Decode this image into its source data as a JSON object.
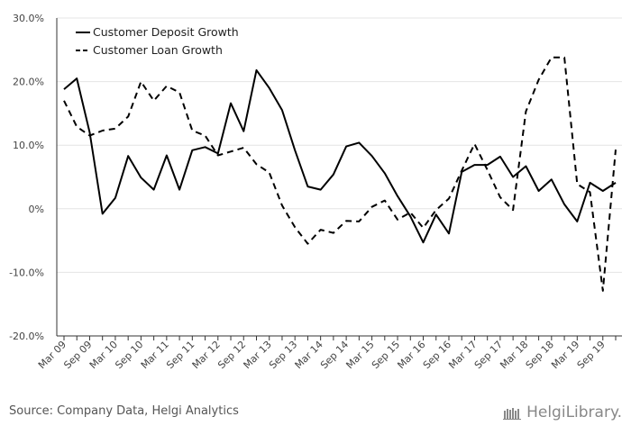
{
  "chart_data": {
    "type": "line",
    "yticks": [
      "30.0%",
      "20.0%",
      "10.0%",
      "0%",
      "-10.0%",
      "-20.0%"
    ],
    "ylim": [
      -20,
      30
    ],
    "xtick_labels": [
      "Mar 09",
      "Sep 09",
      "Mar 10",
      "Sep 10",
      "Mar 11",
      "Sep 11",
      "Mar 12",
      "Sep 12",
      "Mar 13",
      "Sep 13",
      "Mar 14",
      "Sep 14",
      "Mar 15",
      "Sep 15",
      "Mar 16",
      "Sep 16",
      "Mar 17",
      "Sep 17",
      "Mar 18",
      "Sep 18",
      "Mar 19",
      "Sep 19"
    ],
    "x": [
      "Mar 09",
      "Jun 09",
      "Sep 09",
      "Dec 09",
      "Mar 10",
      "Jun 10",
      "Sep 10",
      "Dec 10",
      "Mar 11",
      "Jun 11",
      "Sep 11",
      "Dec 11",
      "Mar 12",
      "Jun 12",
      "Sep 12",
      "Dec 12",
      "Mar 13",
      "Jun 13",
      "Sep 13",
      "Dec 13",
      "Mar 14",
      "Jun 14",
      "Sep 14",
      "Dec 14",
      "Mar 15",
      "Jun 15",
      "Sep 15",
      "Dec 15",
      "Mar 16",
      "Jun 16",
      "Sep 16",
      "Dec 16",
      "Mar 17",
      "Jun 17",
      "Sep 17",
      "Dec 17",
      "Mar 18",
      "Jun 18",
      "Sep 18",
      "Dec 18",
      "Mar 19",
      "Jun 19",
      "Sep 19",
      "Dec 19"
    ],
    "series": [
      {
        "name": "Customer Deposit Growth",
        "style": "solid",
        "values": [
          18.8,
          20.5,
          12.0,
          -0.8,
          1.7,
          8.3,
          4.9,
          3.0,
          8.4,
          3.0,
          9.2,
          9.7,
          8.7,
          16.6,
          12.2,
          21.8,
          19.0,
          15.5,
          9.2,
          3.5,
          3.0,
          5.4,
          9.8,
          10.4,
          8.3,
          5.6,
          2.0,
          -1.2,
          -5.3,
          -0.9,
          -3.9,
          5.8,
          6.9,
          6.9,
          8.2,
          5.0,
          6.7,
          2.8,
          4.6,
          0.7,
          -2.0,
          4.1,
          2.8,
          4.1
        ]
      },
      {
        "name": "Customer Loan Growth",
        "style": "dashed",
        "values": [
          17.0,
          12.9,
          11.5,
          12.3,
          12.6,
          14.5,
          20.0,
          17.0,
          19.3,
          18.3,
          12.3,
          11.5,
          8.4,
          9.0,
          9.6,
          7.0,
          5.7,
          0.5,
          -2.9,
          -5.5,
          -3.3,
          -3.8,
          -1.9,
          -2.0,
          0.3,
          1.3,
          -1.7,
          -0.6,
          -3.0,
          -0.2,
          1.6,
          6.0,
          10.2,
          6.1,
          1.8,
          -0.2,
          15.3,
          20.3,
          23.8,
          23.8,
          3.9,
          2.6,
          -12.9,
          9.3
        ]
      }
    ],
    "legend": "top-left",
    "grid": "horizontal"
  },
  "footer": {
    "source": "Source: Company Data, Helgi Analytics",
    "brand": "HelgiLibrary."
  }
}
